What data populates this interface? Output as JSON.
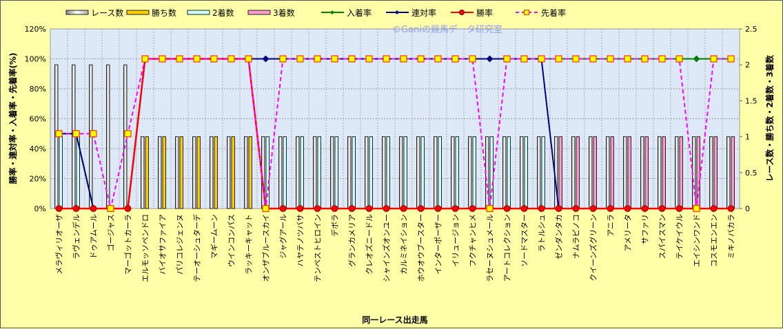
{
  "chart_data": {
    "type": "bar",
    "watermark": "©Ganiの競馬データ研究室",
    "xlabel": "同一レース出走馬",
    "ylabel_left": "勝率・連対率・入着率・先着率(%)",
    "ylabel_right": "レース数・勝ち数・2着数・3着数",
    "ylim_left": [
      0,
      120
    ],
    "ylim_right": [
      0,
      2.5
    ],
    "yticks_left": [
      "0%",
      "20%",
      "40%",
      "60%",
      "80%",
      "100%",
      "120%"
    ],
    "yticks_right": [
      "0",
      "0.5",
      "1",
      "1.5",
      "2",
      "2.5"
    ],
    "grid": true,
    "legend_position": "top",
    "categories": [
      "メラヴィリオーザ",
      "ラヴェンデル",
      "ドゥアムール",
      "ゴージャス",
      "マーゴットカーラ",
      "エルモッソペンドロ",
      "バイオサファイア",
      "パリコレジェンヌ",
      "テーオーシュターデ",
      "マギームーン",
      "ウインコンパス",
      "ラッキーキャット",
      "オンザブルースカイ",
      "ジャグアール",
      "ハヤテノツバサ",
      "テンペストヒロイン",
      "デボラ",
      "グランカメリア",
      "クレオズニードル",
      "シャインズオンユー",
      "カルミネイション",
      "ホウオウブースター",
      "インターポーザー",
      "イリュージョン",
      "フクチャンヒメ",
      "ラセーヌシュメール",
      "アートコレクション",
      "ソードマスター",
      "ラトルシュ",
      "ゼンダンタカ",
      "ナムラピノコ",
      "クイーンズグリーン",
      "アニラ",
      "アメリータ",
      "サファリ",
      "スパイスマン",
      "テイケイウル",
      "エイシンワンド",
      "コスモエンエン",
      "ミキノバカラ"
    ],
    "bar_series": [
      {
        "name": "レース数",
        "color": "#ffffff",
        "values": [
          2,
          2,
          2,
          2,
          2,
          1,
          1,
          1,
          1,
          1,
          1,
          1,
          1,
          1,
          1,
          1,
          1,
          1,
          1,
          1,
          1,
          1,
          1,
          1,
          1,
          1,
          1,
          1,
          1,
          1,
          1,
          1,
          1,
          1,
          1,
          1,
          1,
          1,
          1,
          1
        ]
      },
      {
        "name": "勝ち数",
        "color": "#ffcc00",
        "values": [
          0,
          0,
          0,
          0,
          0,
          1,
          1,
          1,
          1,
          1,
          1,
          1,
          0,
          0,
          0,
          0,
          0,
          0,
          0,
          0,
          0,
          0,
          0,
          0,
          0,
          0,
          0,
          0,
          0,
          0,
          0,
          0,
          0,
          0,
          0,
          0,
          0,
          0,
          0,
          0
        ]
      },
      {
        "name": "2着数",
        "color": "#ccffff",
        "values": [
          1,
          1,
          0,
          0,
          0,
          0,
          0,
          0,
          0,
          0,
          0,
          0,
          1,
          1,
          1,
          1,
          1,
          1,
          1,
          1,
          1,
          1,
          1,
          1,
          1,
          1,
          1,
          1,
          1,
          0,
          0,
          0,
          0,
          0,
          0,
          0,
          0,
          0,
          0,
          0
        ]
      },
      {
        "name": "3着数",
        "color": "#ff99cc",
        "values": [
          0,
          0,
          0,
          0,
          0,
          0,
          0,
          0,
          0,
          0,
          0,
          0,
          0,
          0,
          0,
          0,
          0,
          0,
          0,
          0,
          0,
          0,
          0,
          0,
          0,
          0,
          0,
          0,
          0,
          1,
          1,
          1,
          1,
          1,
          1,
          1,
          1,
          1,
          1,
          1
        ]
      }
    ],
    "line_series": [
      {
        "name": "入着率",
        "color": "#008000",
        "marker": "diamond",
        "values": [
          50,
          50,
          0,
          0,
          0,
          100,
          100,
          100,
          100,
          100,
          100,
          100,
          100,
          100,
          100,
          100,
          100,
          100,
          100,
          100,
          100,
          100,
          100,
          100,
          100,
          100,
          100,
          100,
          100,
          100,
          100,
          100,
          100,
          100,
          100,
          100,
          100,
          100,
          100,
          100
        ]
      },
      {
        "name": "連対率",
        "color": "#000080",
        "marker": "diamond",
        "values": [
          50,
          50,
          0,
          0,
          0,
          100,
          100,
          100,
          100,
          100,
          100,
          100,
          100,
          100,
          100,
          100,
          100,
          100,
          100,
          100,
          100,
          100,
          100,
          100,
          100,
          100,
          100,
          100,
          100,
          0,
          0,
          0,
          0,
          0,
          0,
          0,
          0,
          0,
          0,
          0
        ]
      },
      {
        "name": "勝率",
        "color": "#ff0000",
        "marker": "circle",
        "values": [
          0,
          0,
          0,
          0,
          0,
          100,
          100,
          100,
          100,
          100,
          100,
          100,
          0,
          0,
          0,
          0,
          0,
          0,
          0,
          0,
          0,
          0,
          0,
          0,
          0,
          0,
          0,
          0,
          0,
          0,
          0,
          0,
          0,
          0,
          0,
          0,
          0,
          0,
          0,
          0
        ]
      },
      {
        "name": "先着率",
        "color": "#ff00ff",
        "marker": "square",
        "dashed": true,
        "values": [
          50,
          50,
          50,
          0,
          50,
          100,
          100,
          100,
          100,
          100,
          100,
          100,
          0,
          100,
          100,
          100,
          100,
          100,
          100,
          100,
          100,
          100,
          100,
          100,
          100,
          0,
          100,
          100,
          100,
          100,
          100,
          100,
          100,
          100,
          100,
          100,
          100,
          0,
          100,
          100
        ]
      }
    ]
  }
}
